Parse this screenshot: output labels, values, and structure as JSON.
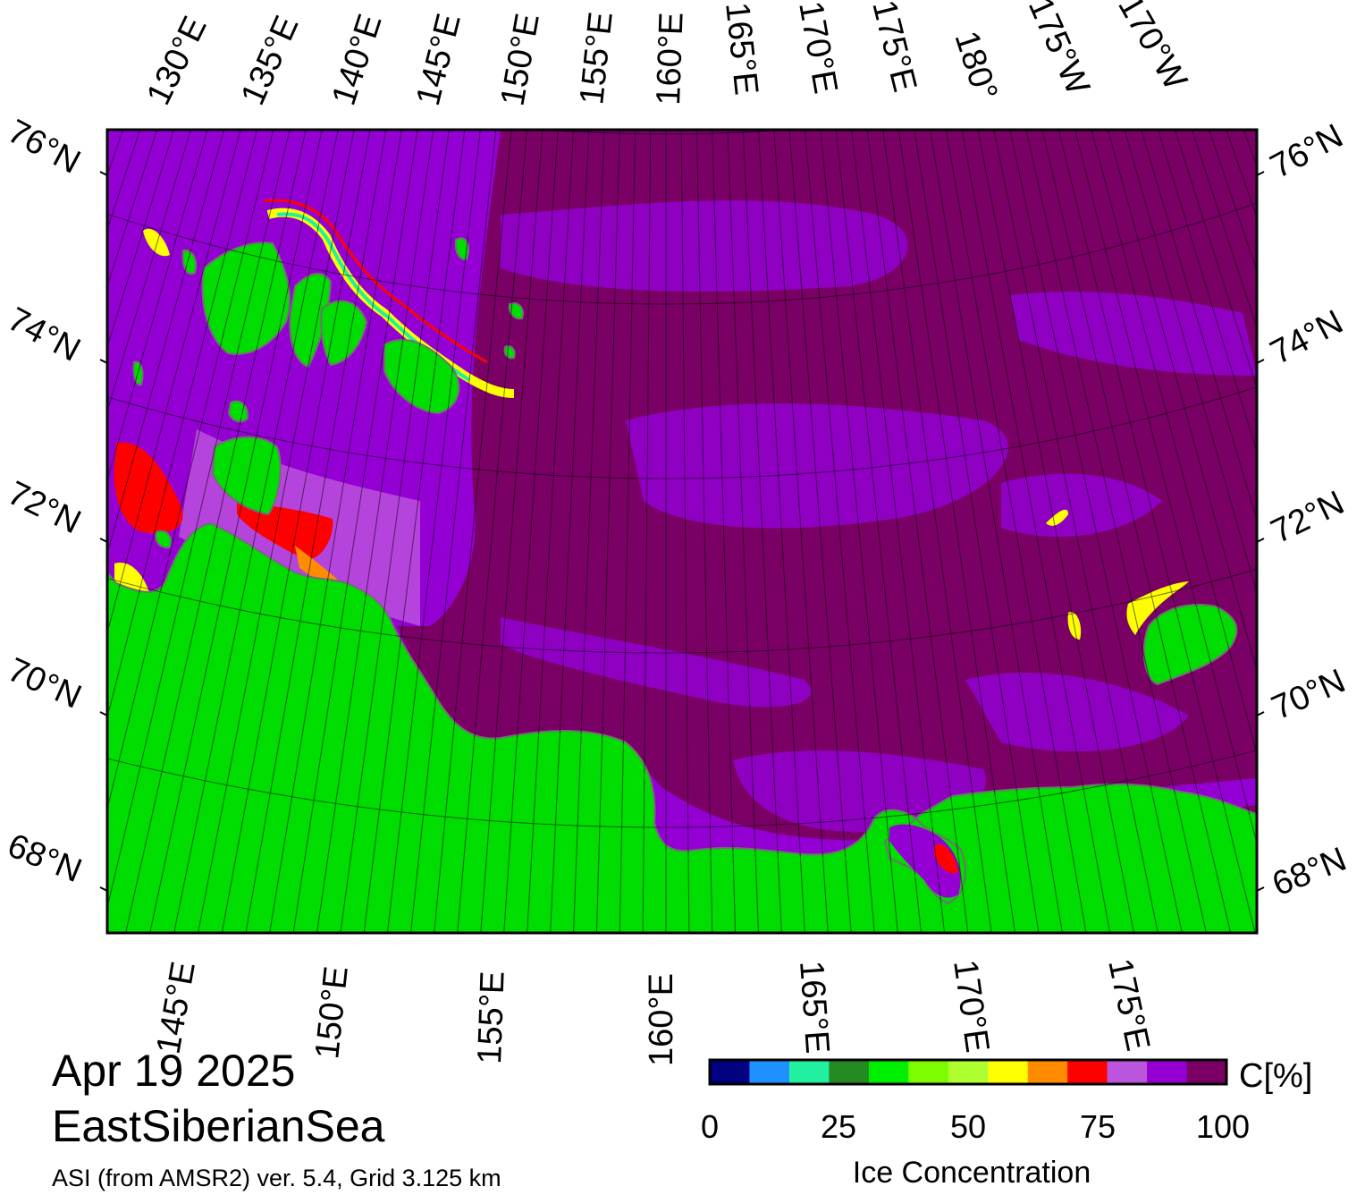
{
  "map": {
    "region": "EastSiberianSea",
    "date": "Apr 19 2025",
    "source": "ASI (from AMSR2) ver. 5.4,  Grid 3.125 km",
    "colors": {
      "land": "#00dd00",
      "ice_100": "#7a0066",
      "ice_90": "#9400d3",
      "ice_85": "#bb55dd",
      "coastline": "#707070"
    },
    "top_lon_labels": [
      "130°E",
      "135°E",
      "140°E",
      "145°E",
      "150°E",
      "155°E",
      "160°E",
      "165°E",
      "170°E",
      "175°E",
      "180°",
      "175°W",
      "170°W"
    ],
    "bottom_lon_labels": [
      "145°E",
      "150°E",
      "155°E",
      "160°E",
      "165°E",
      "170°E",
      "175°E"
    ],
    "left_lat_labels": [
      "76°N",
      "74°N",
      "72°N",
      "70°N",
      "68°N"
    ],
    "right_lat_labels": [
      "76°N",
      "74°N",
      "72°N",
      "70°N",
      "68°N"
    ]
  },
  "colorbar": {
    "title": "Ice Concentration",
    "unit": "C[%]",
    "tick_labels": [
      "0",
      "25",
      "50",
      "75",
      "100"
    ],
    "colors": [
      "#000080",
      "#1e90ff",
      "#20f0a0",
      "#228b22",
      "#00ee00",
      "#7cfc00",
      "#adff2f",
      "#ffff00",
      "#ff8c00",
      "#ff0000",
      "#bb55dd",
      "#9400d3",
      "#7a0066"
    ]
  }
}
